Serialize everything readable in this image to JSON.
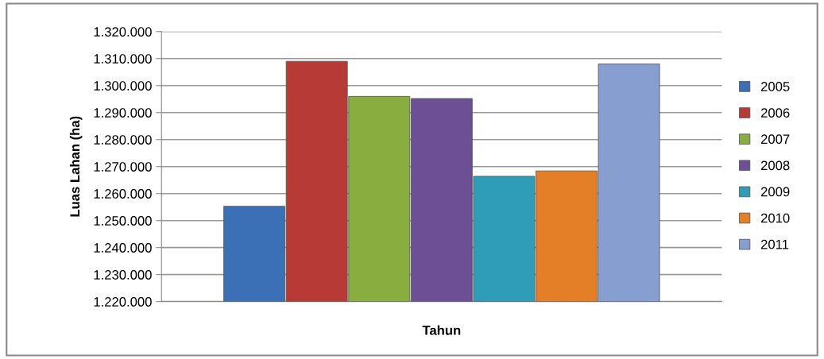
{
  "chart_data": {
    "type": "bar",
    "xlabel": "Tahun",
    "ylabel": "Luas Lahan (ha)",
    "categories": [
      null
    ],
    "series": [
      {
        "name": "2005",
        "color": "#3b6fb6",
        "values": [
          1255300
        ]
      },
      {
        "name": "2006",
        "color": "#b83a36",
        "values": [
          1309000
        ]
      },
      {
        "name": "2007",
        "color": "#8aad3f",
        "values": [
          1296000
        ]
      },
      {
        "name": "2008",
        "color": "#6c4f94",
        "values": [
          1295200
        ]
      },
      {
        "name": "2009",
        "color": "#2f9cb8",
        "values": [
          1266400
        ]
      },
      {
        "name": "2010",
        "color": "#e57f27",
        "values": [
          1268400
        ]
      },
      {
        "name": "2011",
        "color": "#869fd0",
        "values": [
          1308000
        ]
      }
    ],
    "ylim": [
      1220000,
      1320000
    ],
    "yticks": [
      {
        "value": 1220000,
        "label": "1.220.000"
      },
      {
        "value": 1230000,
        "label": "1.230.000"
      },
      {
        "value": 1240000,
        "label": "1.240.000"
      },
      {
        "value": 1250000,
        "label": "1.250.000"
      },
      {
        "value": 1260000,
        "label": "1.260.000"
      },
      {
        "value": 1270000,
        "label": "1.270.000"
      },
      {
        "value": 1280000,
        "label": "1.280.000"
      },
      {
        "value": 1290000,
        "label": "1.290.000"
      },
      {
        "value": 1300000,
        "label": "1.300.000"
      },
      {
        "value": 1310000,
        "label": "1.310.000"
      },
      {
        "value": 1320000,
        "label": "1.320.000"
      }
    ],
    "grid": "y",
    "legend": "right"
  }
}
